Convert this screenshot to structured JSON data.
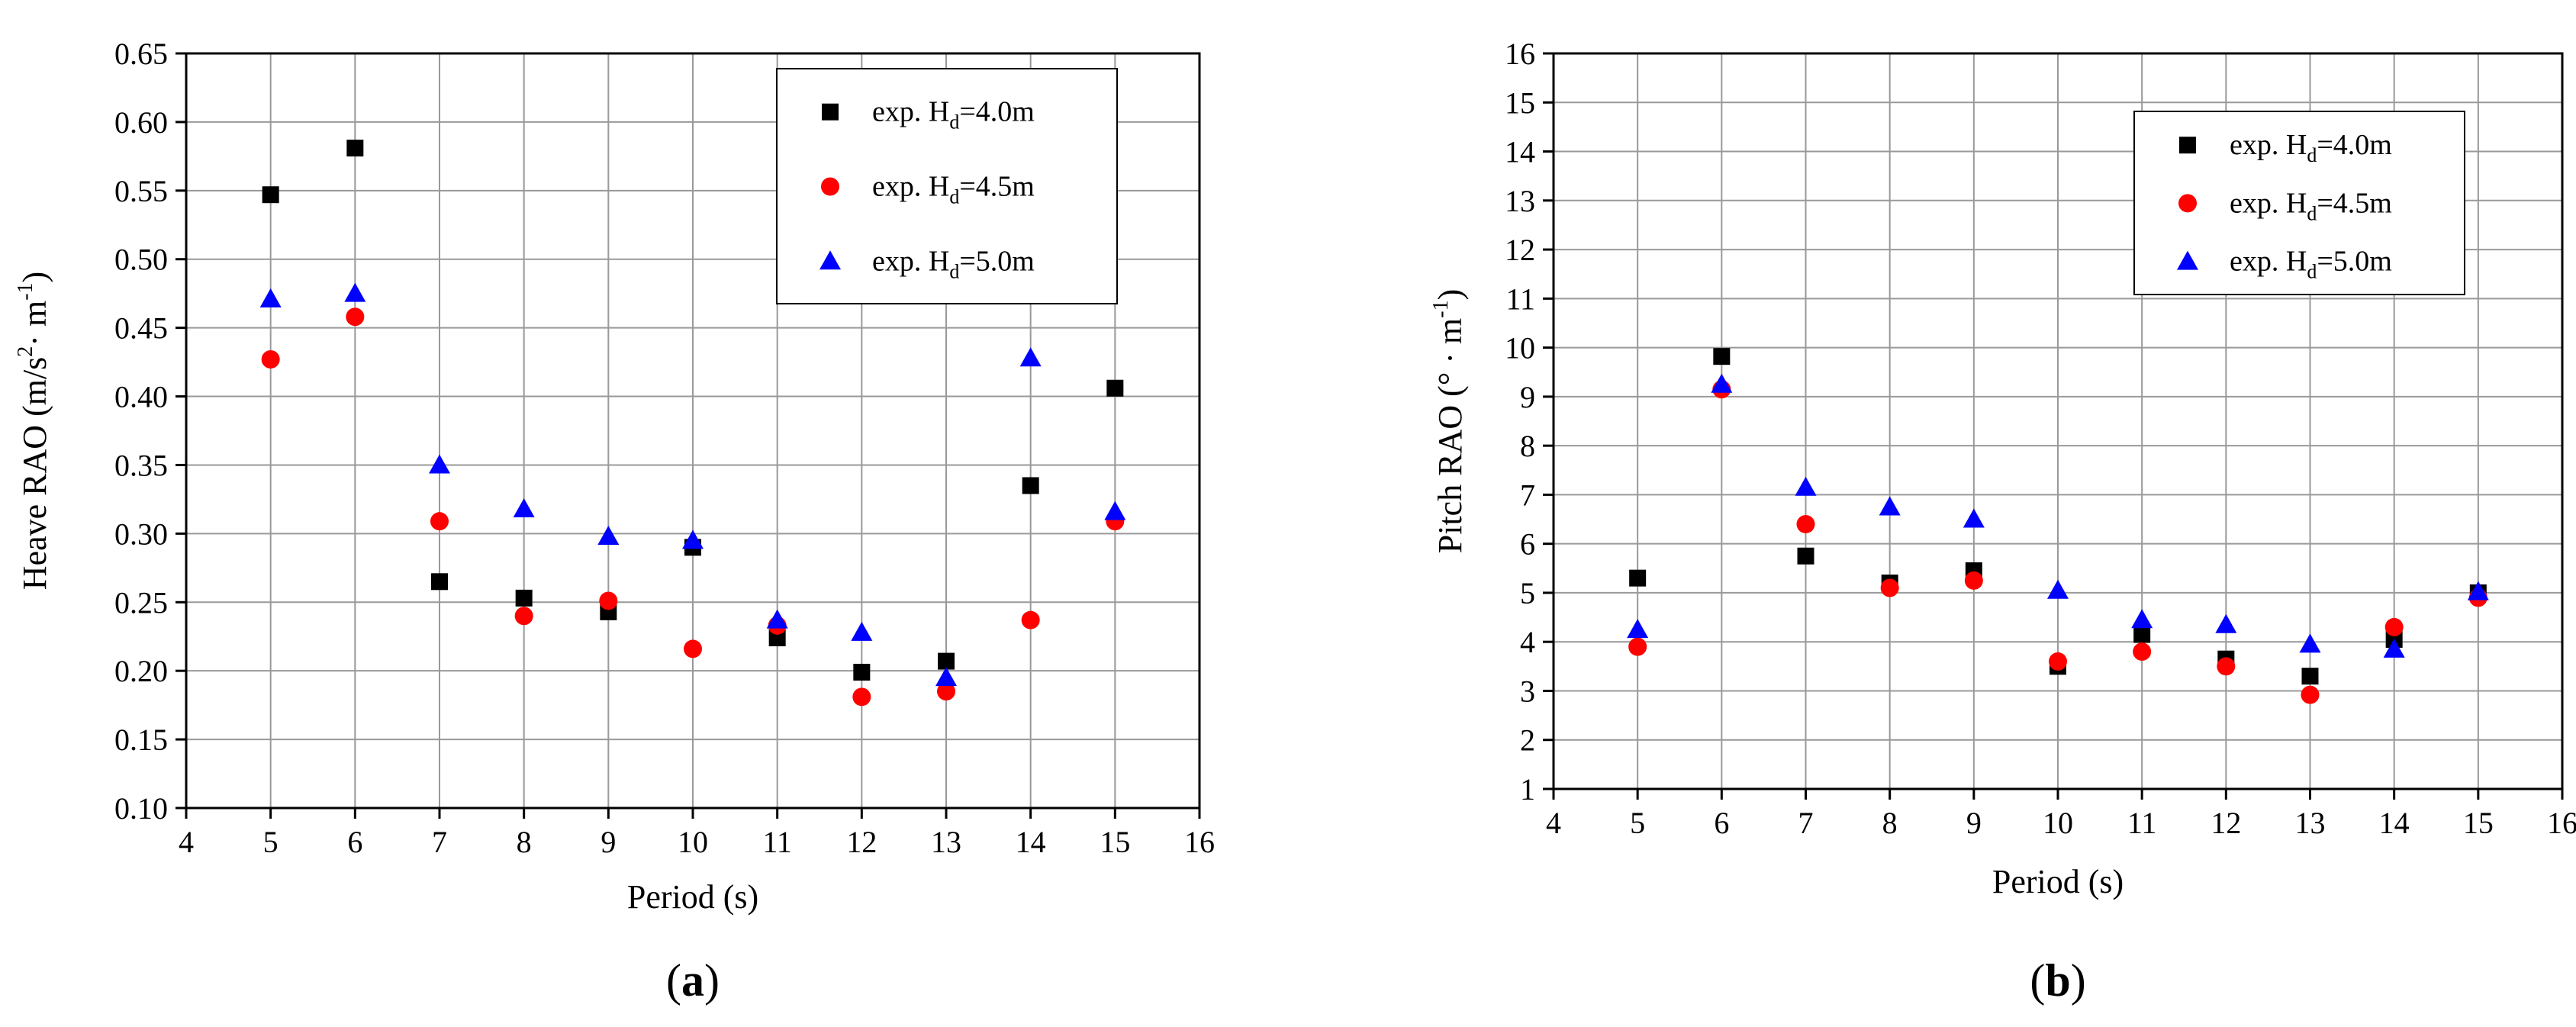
{
  "chart_data": [
    {
      "type": "scatter",
      "panel_label": "a",
      "title": "",
      "xlabel": "Period (s)",
      "ylabel_main": "Heave RAO (m/s",
      "ylabel_sup": "2",
      "ylabel_mid": "· m",
      "ylabel_sup2": "-1",
      "ylabel_end": ")",
      "xlim": [
        4,
        16
      ],
      "ylim": [
        0.1,
        0.65
      ],
      "xticks": [
        "4",
        "5",
        "6",
        "7",
        "8",
        "9",
        "10",
        "11",
        "12",
        "13",
        "14",
        "15",
        "16"
      ],
      "yticks": [
        "0.10",
        "0.15",
        "0.20",
        "0.25",
        "0.30",
        "0.35",
        "0.40",
        "0.45",
        "0.50",
        "0.55",
        "0.60",
        "0.65"
      ],
      "grid": true,
      "legend_position": "top-right",
      "series": [
        {
          "name_prefix": "exp. H",
          "name_sub": "d",
          "name_suffix": "=4.0m",
          "marker": "square",
          "color": "#000000",
          "x": [
            5,
            6,
            7,
            8,
            9,
            10,
            11,
            12,
            13,
            14,
            15
          ],
          "y": [
            0.547,
            0.581,
            0.265,
            0.253,
            0.243,
            0.29,
            0.224,
            0.199,
            0.207,
            0.335,
            0.406
          ]
        },
        {
          "name_prefix": "exp. H",
          "name_sub": "d",
          "name_suffix": "=4.5m",
          "marker": "circle",
          "color": "#ff0000",
          "x": [
            5,
            6,
            7,
            8,
            9,
            10,
            11,
            12,
            13,
            14,
            15
          ],
          "y": [
            0.427,
            0.458,
            0.309,
            0.24,
            0.251,
            0.216,
            0.233,
            0.181,
            0.185,
            0.237,
            0.309
          ]
        },
        {
          "name_prefix": "exp. H",
          "name_sub": "d",
          "name_suffix": "=5.0m",
          "marker": "triangle",
          "color": "#0000ff",
          "x": [
            5,
            6,
            7,
            8,
            9,
            10,
            11,
            12,
            13,
            14,
            15
          ],
          "y": [
            0.471,
            0.475,
            0.35,
            0.318,
            0.298,
            0.295,
            0.237,
            0.228,
            0.195,
            0.428,
            0.316
          ]
        }
      ]
    },
    {
      "type": "scatter",
      "panel_label": "b",
      "title": "",
      "xlabel": "Period (s)",
      "ylabel_main": "Pitch RAO (° · m",
      "ylabel_sup": "-1",
      "ylabel_mid": "",
      "ylabel_sup2": "",
      "ylabel_end": ")",
      "xlim": [
        4,
        16
      ],
      "ylim": [
        1,
        16
      ],
      "xticks": [
        "4",
        "5",
        "6",
        "7",
        "8",
        "9",
        "10",
        "11",
        "12",
        "13",
        "14",
        "15",
        "16"
      ],
      "yticks": [
        "1",
        "2",
        "3",
        "4",
        "5",
        "6",
        "7",
        "8",
        "9",
        "10",
        "11",
        "12",
        "13",
        "14",
        "15",
        "16"
      ],
      "grid": true,
      "legend_position": "top-right",
      "series": [
        {
          "name_prefix": "exp. H",
          "name_sub": "d",
          "name_suffix": "=4.0m",
          "marker": "square",
          "color": "#000000",
          "x": [
            5,
            6,
            7,
            8,
            9,
            10,
            11,
            12,
            13,
            14,
            15
          ],
          "y": [
            5.3,
            9.82,
            5.75,
            5.2,
            5.45,
            3.5,
            4.15,
            3.65,
            3.3,
            4.05,
            5.0
          ]
        },
        {
          "name_prefix": "exp. H",
          "name_sub": "d",
          "name_suffix": "=4.5m",
          "marker": "circle",
          "color": "#ff0000",
          "x": [
            5,
            6,
            7,
            8,
            9,
            10,
            11,
            12,
            13,
            14,
            15
          ],
          "y": [
            3.9,
            9.15,
            6.4,
            5.1,
            5.25,
            3.6,
            3.8,
            3.5,
            2.92,
            4.3,
            4.9
          ]
        },
        {
          "name_prefix": "exp. H",
          "name_sub": "d",
          "name_suffix": "=5.0m",
          "marker": "triangle",
          "color": "#0000ff",
          "x": [
            5,
            6,
            7,
            8,
            9,
            10,
            11,
            12,
            13,
            14,
            15
          ],
          "y": [
            4.25,
            9.25,
            7.15,
            6.75,
            6.5,
            5.05,
            4.45,
            4.35,
            3.95,
            3.85,
            5.02
          ]
        }
      ]
    }
  ]
}
